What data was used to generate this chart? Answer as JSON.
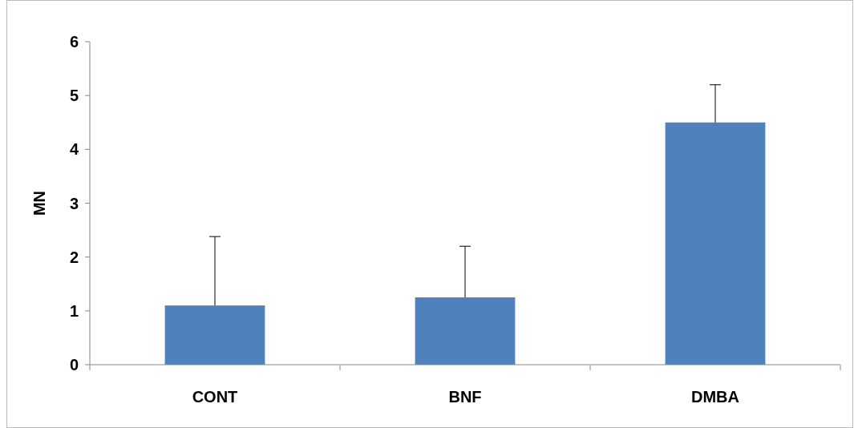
{
  "chart_data": {
    "type": "bar",
    "ylabel": "MN",
    "categories": [
      "CONT",
      "BNF",
      "DMBA"
    ],
    "values": [
      1.1,
      1.25,
      4.5
    ],
    "errors": [
      [
        1.1,
        2.38
      ],
      [
        1.25,
        2.2
      ],
      [
        4.5,
        5.2
      ]
    ],
    "color": "#4f81bd",
    "ylim": [
      0,
      6
    ],
    "yticks": [
      0,
      1,
      2,
      3,
      4,
      5,
      6
    ],
    "grid": false
  }
}
